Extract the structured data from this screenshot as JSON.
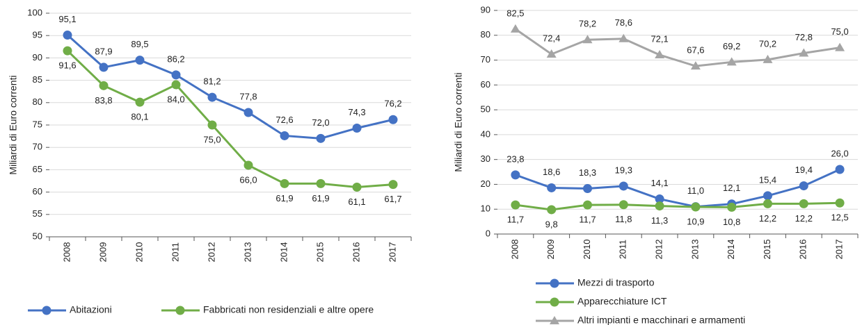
{
  "chart_data": [
    {
      "type": "line",
      "y_label": "Miliardi di Euro correnti",
      "categories": [
        "2008",
        "2009",
        "2010",
        "2011",
        "2012",
        "2013",
        "2014",
        "2015",
        "2016",
        "2017"
      ],
      "ylim": [
        50,
        100
      ],
      "yticks": [
        50,
        55,
        60,
        65,
        70,
        75,
        80,
        85,
        90,
        95,
        100
      ],
      "grid": true,
      "legend": "bottom",
      "series": [
        {
          "name": "Abitazioni",
          "color": "#4472c4",
          "marker": "circle",
          "values": [
            95.1,
            87.9,
            89.5,
            86.2,
            81.2,
            77.8,
            72.6,
            72.0,
            74.3,
            76.2
          ],
          "value_labels": [
            "95,1",
            "87,9",
            "89,5",
            "86,2",
            "81,2",
            "77,8",
            "72,6",
            "72,0",
            "74,3",
            "76,2"
          ]
        },
        {
          "name": "Fabbricati non residenziali e altre opere",
          "color": "#70ad47",
          "marker": "circle",
          "values": [
            91.6,
            83.8,
            80.1,
            84.0,
            75.0,
            66.0,
            61.9,
            61.9,
            61.1,
            61.7
          ],
          "value_labels": [
            "91,6",
            "83,8",
            "80,1",
            "84,0",
            "75,0",
            "66,0",
            "61,9",
            "61,9",
            "61,1",
            "61,7"
          ]
        }
      ]
    },
    {
      "type": "line",
      "y_label": "Miliardi di Euro correnti",
      "categories": [
        "2008",
        "2009",
        "2010",
        "2011",
        "2012",
        "2013",
        "2014",
        "2015",
        "2016",
        "2017"
      ],
      "ylim": [
        0,
        90
      ],
      "yticks": [
        0,
        10,
        20,
        30,
        40,
        50,
        60,
        70,
        80,
        90
      ],
      "grid": true,
      "legend": "bottom",
      "series": [
        {
          "name": "Mezzi di trasporto",
          "color": "#4472c4",
          "marker": "circle",
          "values": [
            23.8,
            18.6,
            18.3,
            19.3,
            14.1,
            11.0,
            12.1,
            15.4,
            19.4,
            26.0
          ],
          "value_labels": [
            "23,8",
            "18,6",
            "18,3",
            "19,3",
            "14,1",
            "11,0",
            "12,1",
            "15,4",
            "19,4",
            "26,0"
          ]
        },
        {
          "name": "Apparecchiature ICT",
          "color": "#70ad47",
          "marker": "circle",
          "values": [
            11.7,
            9.8,
            11.7,
            11.8,
            11.3,
            10.9,
            10.8,
            12.2,
            12.2,
            12.5
          ],
          "value_labels": [
            "11,7",
            "9,8",
            "11,7",
            "11,8",
            "11,3",
            "10,9",
            "10,8",
            "12,2",
            "12,2",
            "12,5"
          ]
        },
        {
          "name": "Altri impianti e macchinari e armamenti",
          "color": "#a5a5a5",
          "marker": "triangle",
          "values": [
            82.5,
            72.4,
            78.2,
            78.6,
            72.1,
            67.6,
            69.2,
            70.2,
            72.8,
            75.0
          ],
          "value_labels": [
            "82,5",
            "72,4",
            "78,2",
            "78,6",
            "72,1",
            "67,6",
            "69,2",
            "70,2",
            "72,8",
            "75,0"
          ]
        }
      ]
    }
  ]
}
